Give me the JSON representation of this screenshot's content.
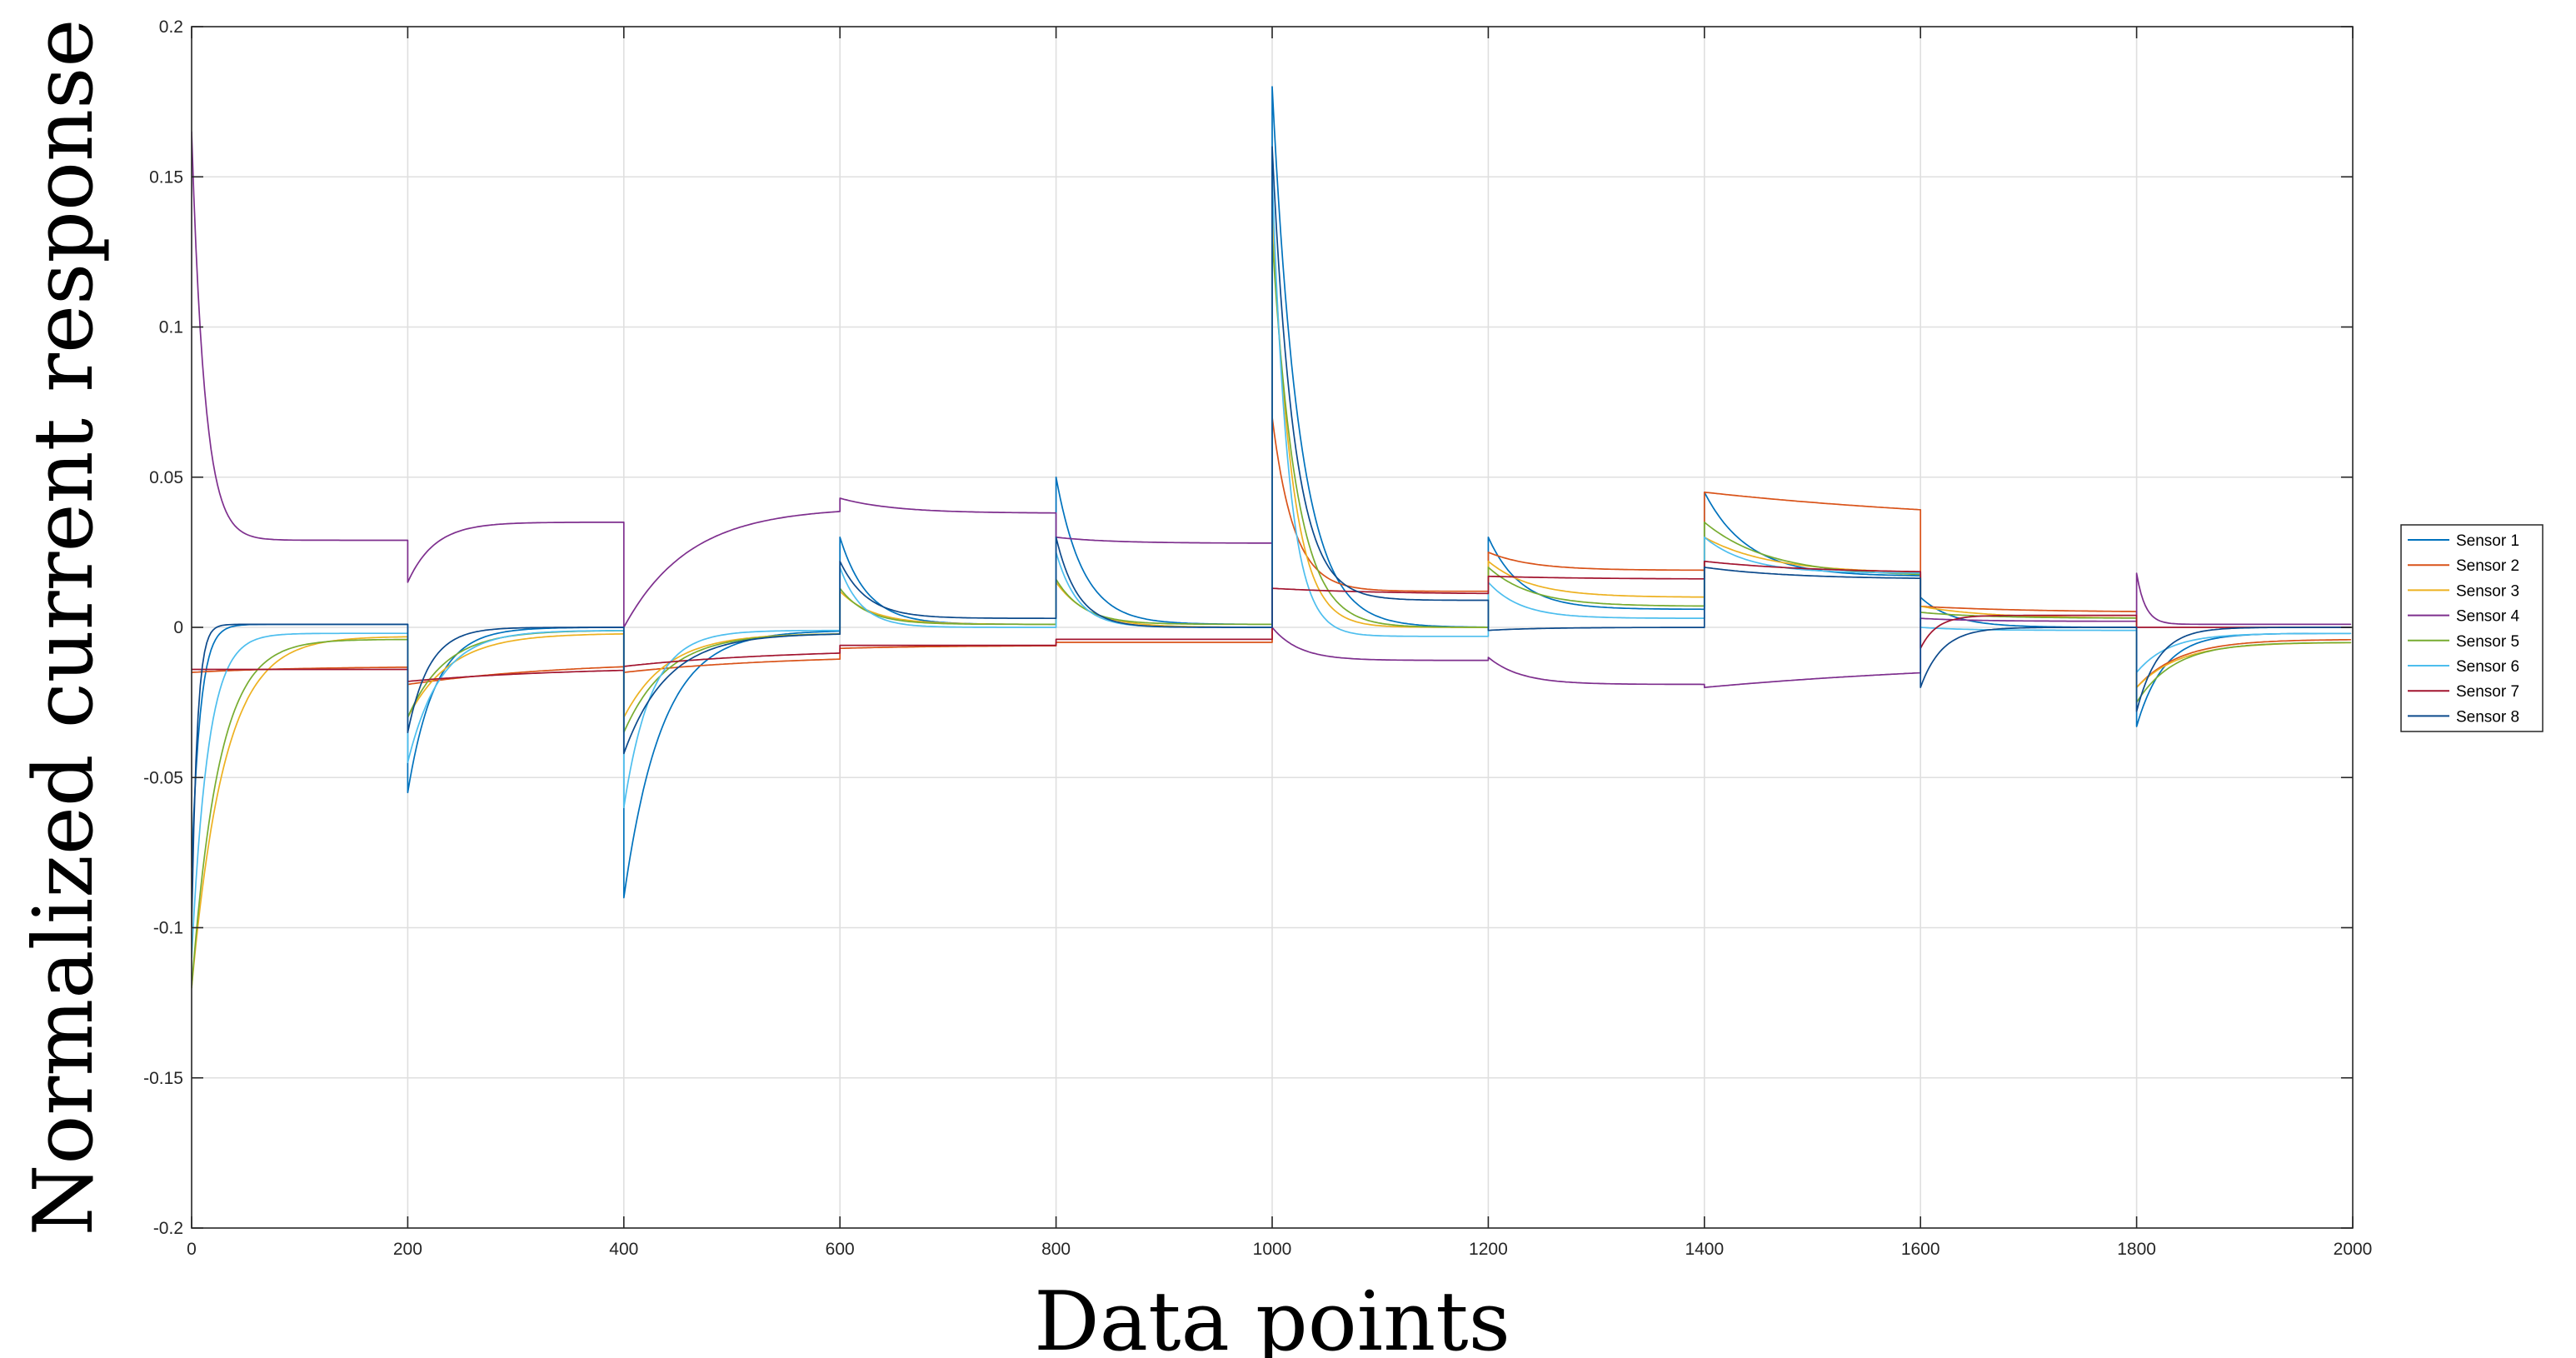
{
  "chart_data": {
    "type": "line",
    "title": "",
    "xlabel": "Data points",
    "ylabel": "Normalized current response",
    "xlim": [
      0,
      2000
    ],
    "ylim": [
      -0.2,
      0.2
    ],
    "xticks": [
      0,
      200,
      400,
      600,
      800,
      1000,
      1200,
      1400,
      1600,
      1800,
      2000
    ],
    "yticks": [
      -0.2,
      -0.15,
      -0.1,
      -0.05,
      0,
      0.05,
      0.1,
      0.15,
      0.2
    ],
    "xtick_labels": [
      "0",
      "200",
      "400",
      "600",
      "800",
      "1000",
      "1200",
      "1400",
      "1600",
      "1800",
      "2000"
    ],
    "ytick_labels": [
      "-0.2",
      "-0.15",
      "-0.1",
      "-0.05",
      "0",
      "0.05",
      "0.1",
      "0.15",
      "0.2"
    ],
    "grid": true,
    "legend_position": "outside-right",
    "series": [
      {
        "name": "Sensor 1",
        "color": "#0072BD",
        "segments": [
          {
            "x0": 0,
            "start": -0.08,
            "end": 0.001,
            "tau": 8
          },
          {
            "x0": 200,
            "start": -0.055,
            "end": 0.0,
            "tau": 25
          },
          {
            "x0": 400,
            "start": -0.09,
            "end": -0.001,
            "tau": 35
          },
          {
            "x0": 600,
            "start": 0.03,
            "end": 0.001,
            "tau": 25
          },
          {
            "x0": 800,
            "start": 0.05,
            "end": 0.001,
            "tau": 25
          },
          {
            "x0": 1000,
            "start": 0.18,
            "end": 0.0,
            "tau": 25
          },
          {
            "x0": 1200,
            "start": 0.03,
            "end": 0.006,
            "tau": 30
          },
          {
            "x0": 1400,
            "start": 0.045,
            "end": 0.017,
            "tau": 40
          },
          {
            "x0": 1600,
            "start": 0.01,
            "end": 0.0,
            "tau": 30
          },
          {
            "x0": 1800,
            "start": -0.033,
            "end": -0.002,
            "tau": 25
          }
        ]
      },
      {
        "name": "Sensor 2",
        "color": "#D95319",
        "segments": [
          {
            "x0": 0,
            "start": -0.015,
            "end": -0.013,
            "tau": 100
          },
          {
            "x0": 200,
            "start": -0.019,
            "end": -0.011,
            "tau": 150
          },
          {
            "x0": 400,
            "start": -0.015,
            "end": -0.009,
            "tau": 150
          },
          {
            "x0": 600,
            "start": -0.007,
            "end": -0.006,
            "tau": 100
          },
          {
            "x0": 800,
            "start": -0.005,
            "end": -0.005,
            "tau": 100
          },
          {
            "x0": 1000,
            "start": 0.07,
            "end": 0.012,
            "tau": 20
          },
          {
            "x0": 1200,
            "start": 0.025,
            "end": 0.019,
            "tau": 40
          },
          {
            "x0": 1400,
            "start": 0.045,
            "end": 0.033,
            "tau": 300
          },
          {
            "x0": 1600,
            "start": 0.007,
            "end": 0.005,
            "tau": 100
          },
          {
            "x0": 1800,
            "start": -0.02,
            "end": -0.004,
            "tau": 40
          }
        ]
      },
      {
        "name": "Sensor 3",
        "color": "#EDB120",
        "segments": [
          {
            "x0": 0,
            "start": -0.12,
            "end": -0.003,
            "tau": 30
          },
          {
            "x0": 200,
            "start": -0.03,
            "end": -0.002,
            "tau": 40
          },
          {
            "x0": 400,
            "start": -0.03,
            "end": -0.002,
            "tau": 40
          },
          {
            "x0": 600,
            "start": 0.012,
            "end": 0.001,
            "tau": 30
          },
          {
            "x0": 800,
            "start": 0.015,
            "end": 0.0,
            "tau": 30
          },
          {
            "x0": 1000,
            "start": 0.14,
            "end": 0.0,
            "tau": 18
          },
          {
            "x0": 1200,
            "start": 0.022,
            "end": 0.01,
            "tau": 40
          },
          {
            "x0": 1400,
            "start": 0.03,
            "end": 0.018,
            "tau": 60
          },
          {
            "x0": 1600,
            "start": 0.007,
            "end": 0.003,
            "tau": 60
          },
          {
            "x0": 1800,
            "start": -0.02,
            "end": -0.005,
            "tau": 40
          }
        ]
      },
      {
        "name": "Sensor 4",
        "color": "#7E2F8E",
        "segments": [
          {
            "x0": 0,
            "start": 0.165,
            "end": 0.029,
            "tau": 12
          },
          {
            "x0": 200,
            "start": 0.015,
            "end": 0.035,
            "tau": 25
          },
          {
            "x0": 400,
            "start": 0.0,
            "end": 0.04,
            "tau": 60
          },
          {
            "x0": 600,
            "start": 0.043,
            "end": 0.038,
            "tau": 50
          },
          {
            "x0": 800,
            "start": 0.03,
            "end": 0.028,
            "tau": 50
          },
          {
            "x0": 1000,
            "start": 0.0,
            "end": -0.011,
            "tau": 25
          },
          {
            "x0": 1200,
            "start": -0.01,
            "end": -0.019,
            "tau": 30
          },
          {
            "x0": 1400,
            "start": -0.02,
            "end": -0.01,
            "tau": 300
          },
          {
            "x0": 1600,
            "start": 0.003,
            "end": 0.002,
            "tau": 50
          },
          {
            "x0": 1800,
            "start": 0.018,
            "end": 0.001,
            "tau": 8
          }
        ]
      },
      {
        "name": "Sensor 5",
        "color": "#77AC30",
        "segments": [
          {
            "x0": 0,
            "start": -0.12,
            "end": -0.004,
            "tau": 25
          },
          {
            "x0": 200,
            "start": -0.03,
            "end": -0.001,
            "tau": 35
          },
          {
            "x0": 400,
            "start": -0.035,
            "end": -0.002,
            "tau": 40
          },
          {
            "x0": 600,
            "start": 0.013,
            "end": 0.001,
            "tau": 25
          },
          {
            "x0": 800,
            "start": 0.016,
            "end": 0.001,
            "tau": 25
          },
          {
            "x0": 1000,
            "start": 0.13,
            "end": 0.0,
            "tau": 22
          },
          {
            "x0": 1200,
            "start": 0.02,
            "end": 0.007,
            "tau": 40
          },
          {
            "x0": 1400,
            "start": 0.035,
            "end": 0.017,
            "tau": 60
          },
          {
            "x0": 1600,
            "start": 0.005,
            "end": 0.003,
            "tau": 60
          },
          {
            "x0": 1800,
            "start": -0.025,
            "end": -0.005,
            "tau": 35
          }
        ]
      },
      {
        "name": "Sensor 6",
        "color": "#4DBEEE",
        "segments": [
          {
            "x0": 0,
            "start": -0.11,
            "end": -0.002,
            "tau": 15
          },
          {
            "x0": 200,
            "start": -0.045,
            "end": -0.001,
            "tau": 30
          },
          {
            "x0": 400,
            "start": -0.06,
            "end": -0.001,
            "tau": 25
          },
          {
            "x0": 600,
            "start": 0.02,
            "end": 0.0,
            "tau": 20
          },
          {
            "x0": 800,
            "start": 0.025,
            "end": 0.0,
            "tau": 20
          },
          {
            "x0": 1000,
            "start": 0.15,
            "end": -0.003,
            "tau": 15
          },
          {
            "x0": 1200,
            "start": 0.015,
            "end": 0.003,
            "tau": 30
          },
          {
            "x0": 1400,
            "start": 0.03,
            "end": 0.018,
            "tau": 40
          },
          {
            "x0": 1600,
            "start": 0.0,
            "end": -0.001,
            "tau": 40
          },
          {
            "x0": 1800,
            "start": -0.015,
            "end": -0.002,
            "tau": 30
          }
        ]
      },
      {
        "name": "Sensor 7",
        "color": "#A2142F",
        "segments": [
          {
            "x0": 0,
            "start": -0.014,
            "end": -0.014,
            "tau": 100
          },
          {
            "x0": 200,
            "start": -0.018,
            "end": -0.013,
            "tau": 150
          },
          {
            "x0": 400,
            "start": -0.013,
            "end": -0.007,
            "tau": 150
          },
          {
            "x0": 600,
            "start": -0.006,
            "end": -0.006,
            "tau": 100
          },
          {
            "x0": 800,
            "start": -0.004,
            "end": -0.004,
            "tau": 100
          },
          {
            "x0": 1000,
            "start": 0.013,
            "end": 0.011,
            "tau": 100
          },
          {
            "x0": 1200,
            "start": 0.017,
            "end": 0.016,
            "tau": 100
          },
          {
            "x0": 1400,
            "start": 0.022,
            "end": 0.018,
            "tau": 100
          },
          {
            "x0": 1600,
            "start": -0.007,
            "end": 0.004,
            "tau": 15
          },
          {
            "x0": 1800,
            "start": 0.0,
            "end": 0.0,
            "tau": 100
          }
        ]
      },
      {
        "name": "Sensor 8",
        "color": "#0C4A8C",
        "segments": [
          {
            "x0": 0,
            "start": -0.1,
            "end": 0.001,
            "tau": 5
          },
          {
            "x0": 200,
            "start": -0.035,
            "end": 0.0,
            "tau": 20
          },
          {
            "x0": 400,
            "start": -0.042,
            "end": -0.002,
            "tau": 40
          },
          {
            "x0": 600,
            "start": 0.022,
            "end": 0.003,
            "tau": 25
          },
          {
            "x0": 800,
            "start": 0.03,
            "end": 0.0,
            "tau": 20
          },
          {
            "x0": 1000,
            "start": 0.16,
            "end": 0.009,
            "tau": 20
          },
          {
            "x0": 1200,
            "start": -0.001,
            "end": 0.0,
            "tau": 50
          },
          {
            "x0": 1400,
            "start": 0.02,
            "end": 0.016,
            "tau": 80
          },
          {
            "x0": 1600,
            "start": -0.02,
            "end": 0.0,
            "tau": 20
          },
          {
            "x0": 1800,
            "start": -0.028,
            "end": 0.0,
            "tau": 20
          }
        ]
      }
    ]
  }
}
